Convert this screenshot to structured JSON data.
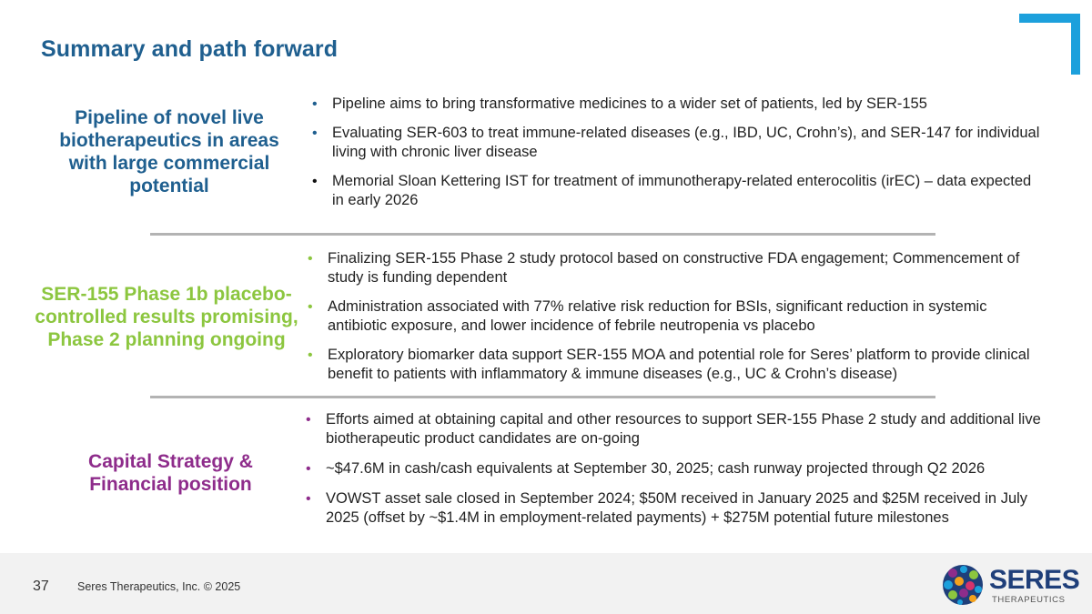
{
  "title": "Summary and path forward",
  "colors": {
    "blue": "#1f5f8f",
    "green": "#8cc63f",
    "purple": "#8e2c8b",
    "accent": "#1ca0dc"
  },
  "sections": [
    {
      "label": "Pipeline of novel live biotherapeutics in areas with large commercial potential",
      "bullets": [
        "Pipeline aims to bring transformative medicines to a wider set of patients, led by SER-155",
        "Evaluating SER-603 to treat immune-related diseases (e.g., IBD, UC, Crohn’s), and SER-147 for individual living with chronic liver disease",
        "Memorial Sloan Kettering IST for treatment of immunotherapy-related enterocolitis (irEC) – data expected in early 2026"
      ]
    },
    {
      "label": "SER-155 Phase 1b placebo-controlled results promising, Phase 2 planning ongoing",
      "bullets": [
        "Finalizing SER-155 Phase 2 study protocol based on constructive FDA engagement; Commencement of study is funding dependent",
        "Administration associated with 77% relative risk reduction for BSIs, significant reduction in systemic antibiotic exposure, and lower incidence of febrile neutropenia vs placebo",
        "Exploratory biomarker data support SER-155 MOA and potential role for Seres’ platform to provide clinical benefit to patients with inflammatory & immune diseases (e.g., UC & Crohn’s disease)"
      ]
    },
    {
      "label": "Capital Strategy & Financial position",
      "bullets": [
        "Efforts aimed at obtaining capital and other resources to support SER-155 Phase 2 study and additional live biotherapeutic product candidates are on-going",
        "~$47.6M in cash/cash equivalents at September 30, 2025; cash runway projected through Q2 2026",
        "VOWST asset sale closed in September 2024; $50M received in January 2025 and $25M received in July 2025  (offset by ~$1.4M in employment-related payments) + $275M potential future milestones"
      ]
    }
  ],
  "footer": {
    "page_number": "37",
    "copyright": "Seres Therapeutics, Inc. © 2025",
    "logo_word": "SERES",
    "logo_sub": "THERAPEUTICS"
  }
}
